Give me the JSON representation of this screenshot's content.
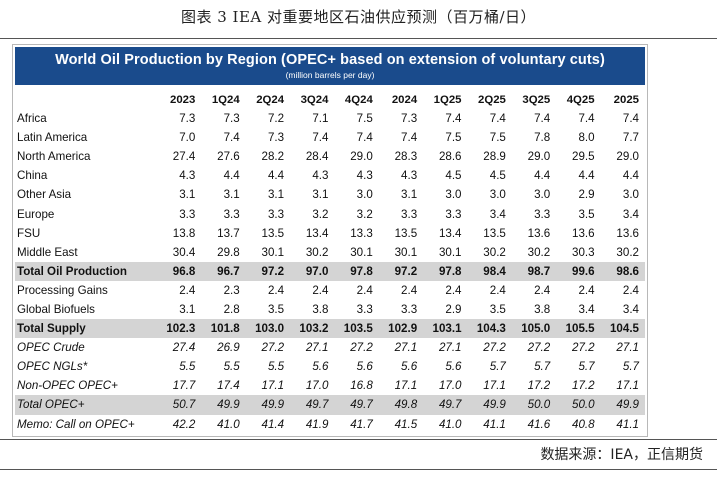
{
  "caption": "图表 3   IEA 对重要地区石油供应预测（百万桶/日）",
  "banner": {
    "title": "World Oil Production by Region (OPEC+ based on extension of voluntary cuts)",
    "subtitle": "(million barrels per day)"
  },
  "table": {
    "columns": [
      "2023",
      "1Q24",
      "2Q24",
      "3Q24",
      "4Q24",
      "2024",
      "1Q25",
      "2Q25",
      "3Q25",
      "4Q25",
      "2025"
    ],
    "rows": [
      {
        "label": "Africa",
        "values": [
          "7.3",
          "7.3",
          "7.2",
          "7.1",
          "7.5",
          "7.3",
          "7.4",
          "7.4",
          "7.4",
          "7.4",
          "7.4"
        ],
        "style": ""
      },
      {
        "label": "Latin America",
        "values": [
          "7.0",
          "7.4",
          "7.3",
          "7.4",
          "7.4",
          "7.4",
          "7.5",
          "7.5",
          "7.8",
          "8.0",
          "7.7"
        ],
        "style": ""
      },
      {
        "label": "North America",
        "values": [
          "27.4",
          "27.6",
          "28.2",
          "28.4",
          "29.0",
          "28.3",
          "28.6",
          "28.9",
          "29.0",
          "29.5",
          "29.0"
        ],
        "style": ""
      },
      {
        "label": "China",
        "values": [
          "4.3",
          "4.4",
          "4.4",
          "4.3",
          "4.3",
          "4.3",
          "4.5",
          "4.5",
          "4.4",
          "4.4",
          "4.4"
        ],
        "style": ""
      },
      {
        "label": "Other Asia",
        "values": [
          "3.1",
          "3.1",
          "3.1",
          "3.1",
          "3.0",
          "3.1",
          "3.0",
          "3.0",
          "3.0",
          "2.9",
          "3.0"
        ],
        "style": ""
      },
      {
        "label": "Europe",
        "values": [
          "3.3",
          "3.3",
          "3.3",
          "3.2",
          "3.2",
          "3.3",
          "3.3",
          "3.4",
          "3.3",
          "3.5",
          "3.4"
        ],
        "style": ""
      },
      {
        "label": "FSU",
        "values": [
          "13.8",
          "13.7",
          "13.5",
          "13.4",
          "13.3",
          "13.5",
          "13.4",
          "13.5",
          "13.6",
          "13.6",
          "13.6"
        ],
        "style": ""
      },
      {
        "label": "Middle East",
        "values": [
          "30.4",
          "29.8",
          "30.1",
          "30.2",
          "30.1",
          "30.1",
          "30.1",
          "30.2",
          "30.2",
          "30.3",
          "30.2"
        ],
        "style": ""
      },
      {
        "label": "Total Oil Production",
        "values": [
          "96.8",
          "96.7",
          "97.2",
          "97.0",
          "97.8",
          "97.2",
          "97.8",
          "98.4",
          "98.7",
          "99.6",
          "98.6"
        ],
        "style": "bold shade"
      },
      {
        "label": "Processing Gains",
        "values": [
          "2.4",
          "2.3",
          "2.4",
          "2.4",
          "2.4",
          "2.4",
          "2.4",
          "2.4",
          "2.4",
          "2.4",
          "2.4"
        ],
        "style": ""
      },
      {
        "label": "Global Biofuels",
        "values": [
          "3.1",
          "2.8",
          "3.5",
          "3.8",
          "3.3",
          "3.3",
          "2.9",
          "3.5",
          "3.8",
          "3.4",
          "3.4"
        ],
        "style": ""
      },
      {
        "label": "Total Supply",
        "values": [
          "102.3",
          "101.8",
          "103.0",
          "103.2",
          "103.5",
          "102.9",
          "103.1",
          "104.3",
          "105.0",
          "105.5",
          "104.5"
        ],
        "style": "bold shade"
      },
      {
        "label": "OPEC Crude",
        "values": [
          "27.4",
          "26.9",
          "27.2",
          "27.1",
          "27.2",
          "27.1",
          "27.1",
          "27.2",
          "27.2",
          "27.2",
          "27.1"
        ],
        "style": "italic"
      },
      {
        "label": "OPEC NGLs*",
        "values": [
          "5.5",
          "5.5",
          "5.5",
          "5.6",
          "5.6",
          "5.6",
          "5.6",
          "5.7",
          "5.7",
          "5.7",
          "5.7"
        ],
        "style": "italic"
      },
      {
        "label": "Non-OPEC OPEC+",
        "values": [
          "17.7",
          "17.4",
          "17.1",
          "17.0",
          "16.8",
          "17.1",
          "17.0",
          "17.1",
          "17.2",
          "17.2",
          "17.1"
        ],
        "style": "italic"
      },
      {
        "label": "Total OPEC+",
        "values": [
          "50.7",
          "49.9",
          "49.9",
          "49.7",
          "49.7",
          "49.8",
          "49.7",
          "49.9",
          "50.0",
          "50.0",
          "49.9"
        ],
        "style": "italic shade"
      },
      {
        "label": "Memo: Call on OPEC+",
        "values": [
          "42.2",
          "41.0",
          "41.4",
          "41.9",
          "41.7",
          "41.5",
          "41.0",
          "41.1",
          "41.6",
          "40.8",
          "41.1"
        ],
        "style": "italic"
      }
    ]
  },
  "source": "数据来源：IEA，正信期货"
}
